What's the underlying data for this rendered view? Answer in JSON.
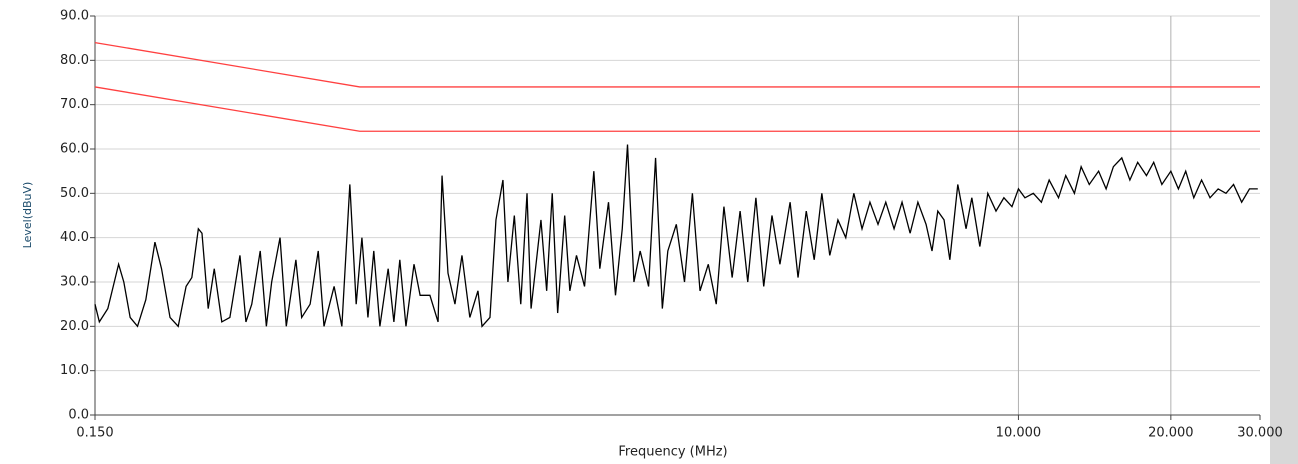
{
  "chart_data": {
    "type": "line",
    "xscale": "log",
    "grid": true,
    "xlabel": "Frequency (MHz)",
    "ylabel": "Level(dBuV)",
    "xlim": [
      0.15,
      30
    ],
    "ylim": [
      0,
      90
    ],
    "xticks": [
      {
        "value": 0.15,
        "label": "0.150"
      },
      {
        "value": 10,
        "label": "10.000"
      },
      {
        "value": 20,
        "label": "20.000"
      },
      {
        "value": 30,
        "label": "30.000"
      }
    ],
    "yticks": [
      {
        "value": 0,
        "label": "0.0"
      },
      {
        "value": 10,
        "label": "10.0"
      },
      {
        "value": 20,
        "label": "20.0"
      },
      {
        "value": 30,
        "label": "30.0"
      },
      {
        "value": 40,
        "label": "40.0"
      },
      {
        "value": 50,
        "label": "50.0"
      },
      {
        "value": 60,
        "label": "60.0"
      },
      {
        "value": 70,
        "label": "70.0"
      },
      {
        "value": 80,
        "label": "80.0"
      },
      {
        "value": 90,
        "label": "90.0"
      }
    ],
    "series": [
      {
        "color": "#ff4040",
        "x": [
          0.15,
          0.5,
          30
        ],
        "values": [
          84,
          74,
          74
        ]
      },
      {
        "color": "#ff4040",
        "x": [
          0.15,
          0.5,
          30
        ],
        "values": [
          74,
          64,
          64
        ]
      },
      {
        "color": "#000000",
        "x": [
          0.15,
          0.153,
          0.159,
          0.167,
          0.171,
          0.176,
          0.182,
          0.189,
          0.197,
          0.203,
          0.211,
          0.219,
          0.227,
          0.233,
          0.24,
          0.244,
          0.251,
          0.258,
          0.267,
          0.277,
          0.29,
          0.298,
          0.306,
          0.318,
          0.327,
          0.335,
          0.348,
          0.358,
          0.374,
          0.384,
          0.399,
          0.414,
          0.425,
          0.445,
          0.461,
          0.478,
          0.492,
          0.505,
          0.519,
          0.533,
          0.548,
          0.569,
          0.584,
          0.6,
          0.617,
          0.64,
          0.658,
          0.688,
          0.714,
          0.727,
          0.747,
          0.771,
          0.796,
          0.825,
          0.856,
          0.872,
          0.904,
          0.929,
          0.959,
          0.981,
          1.01,
          1.04,
          1.07,
          1.09,
          1.14,
          1.17,
          1.2,
          1.23,
          1.27,
          1.3,
          1.34,
          1.39,
          1.45,
          1.49,
          1.55,
          1.6,
          1.65,
          1.69,
          1.74,
          1.79,
          1.86,
          1.92,
          1.98,
          2.03,
          2.11,
          2.19,
          2.27,
          2.35,
          2.44,
          2.53,
          2.62,
          2.72,
          2.82,
          2.92,
          3.03,
          3.14,
          3.26,
          3.38,
          3.54,
          3.67,
          3.81,
          3.95,
          4.09,
          4.24,
          4.4,
          4.56,
          4.73,
          4.91,
          5.09,
          5.28,
          5.47,
          5.68,
          5.89,
          6.11,
          6.33,
          6.57,
          6.75,
          6.93,
          7.13,
          7.32,
          7.59,
          7.88,
          8.09,
          8.39,
          8.7,
          9.03,
          9.36,
          9.71,
          10.0,
          10.3,
          10.7,
          11.1,
          11.5,
          12.0,
          12.4,
          12.9,
          13.3,
          13.8,
          14.4,
          14.9,
          15.4,
          16.0,
          16.6,
          17.2,
          17.9,
          18.5,
          19.2,
          20.0,
          20.7,
          21.4,
          22.2,
          23.0,
          23.9,
          24.8,
          25.7,
          26.6,
          27.6,
          28.6,
          29.7
        ],
        "values": [
          25,
          21,
          24,
          34,
          30,
          22,
          20,
          26,
          39,
          33,
          22,
          20,
          29,
          31,
          42,
          41,
          24,
          33,
          21,
          22,
          36,
          21,
          25,
          37,
          20,
          30,
          40,
          20,
          35,
          22,
          25,
          37,
          20,
          29,
          20,
          52,
          25,
          40,
          22,
          37,
          20,
          33,
          21,
          35,
          20,
          34,
          27,
          27,
          21,
          54,
          32,
          25,
          36,
          22,
          28,
          20,
          22,
          44,
          53,
          30,
          45,
          25,
          50,
          24,
          44,
          28,
          50,
          23,
          45,
          28,
          36,
          29,
          55,
          33,
          48,
          27,
          42,
          61,
          30,
          37,
          29,
          58,
          24,
          37,
          43,
          30,
          50,
          28,
          34,
          25,
          47,
          31,
          46,
          30,
          49,
          29,
          45,
          34,
          48,
          31,
          46,
          35,
          50,
          36,
          44,
          40,
          50,
          42,
          48,
          43,
          48,
          42,
          48,
          41,
          48,
          43,
          37,
          46,
          44,
          35,
          52,
          42,
          49,
          38,
          50,
          46,
          49,
          47,
          51,
          49,
          50,
          48,
          53,
          49,
          54,
          50,
          56,
          52,
          55,
          51,
          56,
          58,
          53,
          57,
          54,
          57,
          52,
          55,
          51,
          55,
          49,
          53,
          49,
          51,
          50,
          52,
          48,
          51,
          51
        ]
      }
    ]
  }
}
